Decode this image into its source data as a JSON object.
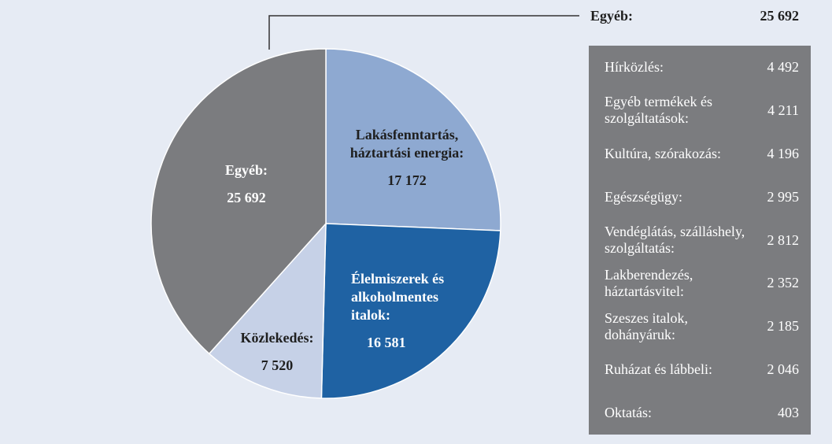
{
  "chart_data": {
    "type": "pie",
    "categories": [
      "Lakásfenntartás, háztartási energia:",
      "Élelmiszerek és alkoholmentes italok:",
      "Közlekedés:",
      "Egyéb:"
    ],
    "values": [
      17172,
      16581,
      7520,
      25692
    ],
    "value_labels": [
      "17 172",
      "16 581",
      "7 520",
      "25 692"
    ],
    "colors": [
      "#8ea9d1",
      "#1f62a3",
      "#c6d1e7",
      "#7b7c7f"
    ],
    "breakdown": [
      {
        "name": "Hírközlés:",
        "value": 4492,
        "value_label": "4 492"
      },
      {
        "name": "Egyéb termékek és szolgáltatások:",
        "value": 4211,
        "value_label": "4 211"
      },
      {
        "name": "Kultúra, szórakozás:",
        "value": 4196,
        "value_label": "4 196"
      },
      {
        "name": "Egészségügy:",
        "value": 2995,
        "value_label": "2 995"
      },
      {
        "name": "Vendéglátás, szálláshely, szolgáltatás:",
        "value": 2812,
        "value_label": "2 812"
      },
      {
        "name": "Lakberendezés, háztartásvitel:",
        "value": 2352,
        "value_label": "2 352"
      },
      {
        "name": "Szeszes italok, dohányáruk:",
        "value": 2185,
        "value_label": "2 185"
      },
      {
        "name": "Ruházat és lábbeli:",
        "value": 2046,
        "value_label": "2 046"
      },
      {
        "name": "Oktatás:",
        "value": 403,
        "value_label": "403"
      }
    ]
  }
}
